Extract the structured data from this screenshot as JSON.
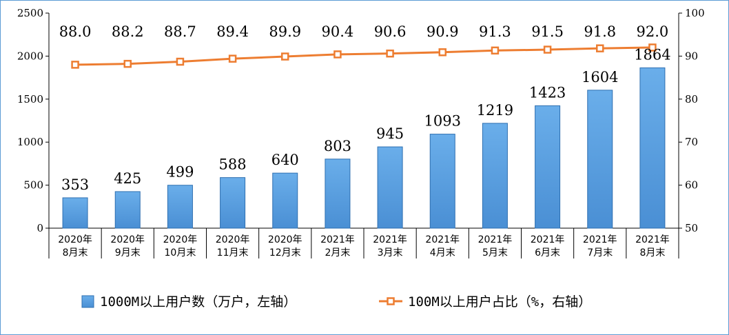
{
  "chart_data": {
    "type": "bar",
    "categories": [
      [
        "2020年",
        "8月末"
      ],
      [
        "2020年",
        "9月末"
      ],
      [
        "2020年",
        "10月末"
      ],
      [
        "2020年",
        "11月末"
      ],
      [
        "2020年",
        "12月末"
      ],
      [
        "2021年",
        "2月末"
      ],
      [
        "2021年",
        "3月末"
      ],
      [
        "2021年",
        "4月末"
      ],
      [
        "2021年",
        "5月末"
      ],
      [
        "2021年",
        "6月末"
      ],
      [
        "2021年",
        "7月末"
      ],
      [
        "2021年",
        "8月末"
      ]
    ],
    "series": [
      {
        "name": "1000M以上用户数（万户，左轴）",
        "type": "bar",
        "axis": "left",
        "values": [
          353,
          425,
          499,
          588,
          640,
          803,
          945,
          1093,
          1219,
          1423,
          1604,
          1864
        ],
        "color": "#5b9bd5"
      },
      {
        "name": "100M以上用户占比（%，右轴）",
        "type": "line",
        "axis": "right",
        "values": [
          88.0,
          88.2,
          88.7,
          89.4,
          89.9,
          90.4,
          90.6,
          90.9,
          91.3,
          91.5,
          91.8,
          92.0
        ],
        "color": "#ed7d31"
      }
    ],
    "y_left": {
      "ylim": [
        0,
        2500
      ],
      "ticks": [
        0,
        500,
        1000,
        1500,
        2000,
        2500
      ]
    },
    "y_right": {
      "ylim": [
        50,
        100
      ],
      "ticks": [
        50,
        60,
        70,
        80,
        90,
        100
      ]
    },
    "grid": false,
    "legend_placement": "bottom"
  }
}
